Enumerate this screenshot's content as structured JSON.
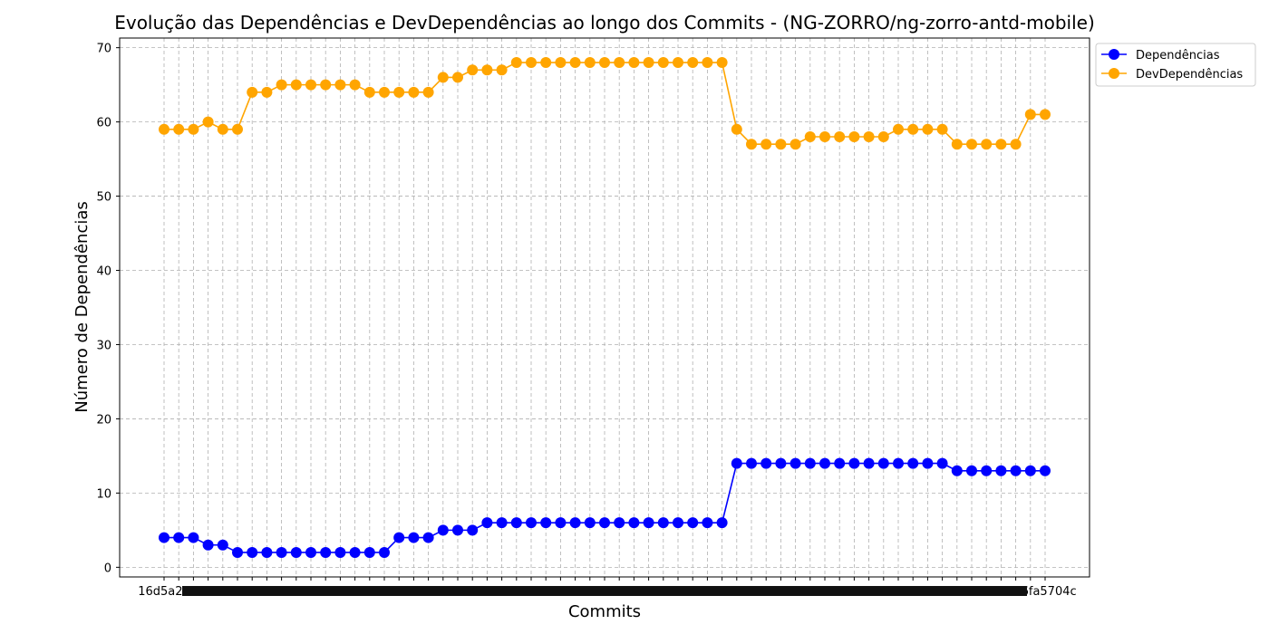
{
  "chart_data": {
    "type": "line",
    "title": "Evolução das Dependências e DevDependências ao longo dos Commits - (NG-ZORRO/ng-zorro-antd-mobile)",
    "xlabel": "Commits",
    "ylabel": "Número de Dependências",
    "ylim": [
      -1.3,
      71.3
    ],
    "yticks": [
      0,
      10,
      20,
      30,
      40,
      50,
      60,
      70
    ],
    "grid": true,
    "legend_position": "top-right",
    "x_count": 61,
    "x_tick_first": "16d5a21",
    "x_tick_last": "16fa5704c",
    "series": [
      {
        "name": "Dependências",
        "color": "#0000ff",
        "values": [
          4,
          4,
          4,
          3,
          3,
          2,
          2,
          2,
          2,
          2,
          2,
          2,
          2,
          2,
          2,
          2,
          4,
          4,
          4,
          5,
          5,
          5,
          6,
          6,
          6,
          6,
          6,
          6,
          6,
          6,
          6,
          6,
          6,
          6,
          6,
          6,
          6,
          6,
          6,
          14,
          14,
          14,
          14,
          14,
          14,
          14,
          14,
          14,
          14,
          14,
          14,
          14,
          14,
          14,
          13,
          13,
          13,
          13,
          13,
          13,
          13
        ]
      },
      {
        "name": "DevDependências",
        "color": "#ffa500",
        "values": [
          59,
          59,
          59,
          60,
          59,
          59,
          64,
          64,
          65,
          65,
          65,
          65,
          65,
          65,
          64,
          64,
          64,
          64,
          64,
          66,
          66,
          67,
          67,
          67,
          68,
          68,
          68,
          68,
          68,
          68,
          68,
          68,
          68,
          68,
          68,
          68,
          68,
          68,
          68,
          59,
          57,
          57,
          57,
          57,
          58,
          58,
          58,
          58,
          58,
          58,
          59,
          59,
          59,
          59,
          57,
          57,
          57,
          57,
          57,
          61,
          61
        ]
      }
    ]
  }
}
